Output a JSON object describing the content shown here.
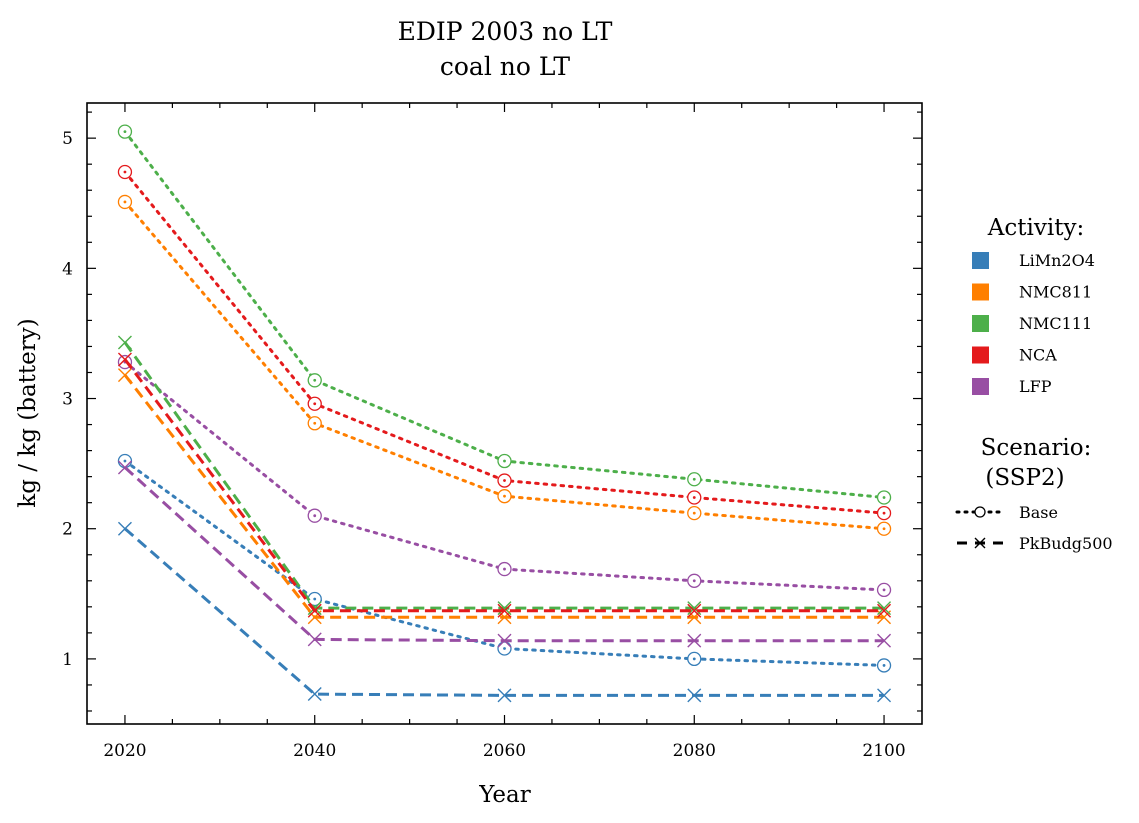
{
  "chart_data": {
    "type": "line",
    "title": [
      "EDIP 2003 no LT",
      "coal no LT"
    ],
    "xlabel": "Year",
    "ylabel": "kg / kg (battery)",
    "x": [
      2020,
      2040,
      2060,
      2080,
      2100
    ],
    "xlim": [
      2016,
      2104
    ],
    "ylim": [
      0.5,
      5.27
    ],
    "xticks": [
      2020,
      2040,
      2060,
      2080,
      2100
    ],
    "yticks": [
      1,
      2,
      3,
      4,
      5
    ],
    "activities": [
      {
        "name": "LiMn2O4",
        "color": "#377eb8"
      },
      {
        "name": "NMC811",
        "color": "#ff7f00"
      },
      {
        "name": "NMC111",
        "color": "#4daf4a"
      },
      {
        "name": "NCA",
        "color": "#e41a1c"
      },
      {
        "name": "LFP",
        "color": "#984ea3"
      }
    ],
    "scenarios": [
      {
        "name": "Base",
        "line": "dotted",
        "marker": "circle"
      },
      {
        "name": "PkBudg500",
        "line": "dashed",
        "marker": "x"
      }
    ],
    "series": [
      {
        "activity": "LiMn2O4",
        "scenario": "Base",
        "values": [
          2.52,
          1.46,
          1.08,
          1.0,
          0.95
        ]
      },
      {
        "activity": "NMC811",
        "scenario": "Base",
        "values": [
          4.51,
          2.81,
          2.25,
          2.12,
          2.0
        ]
      },
      {
        "activity": "NMC111",
        "scenario": "Base",
        "values": [
          5.05,
          3.14,
          2.52,
          2.38,
          2.24
        ]
      },
      {
        "activity": "NCA",
        "scenario": "Base",
        "values": [
          4.74,
          2.96,
          2.37,
          2.24,
          2.12
        ]
      },
      {
        "activity": "LFP",
        "scenario": "Base",
        "values": [
          3.28,
          2.1,
          1.69,
          1.6,
          1.53
        ]
      },
      {
        "activity": "LiMn2O4",
        "scenario": "PkBudg500",
        "values": [
          2.0,
          0.73,
          0.72,
          0.72,
          0.72
        ]
      },
      {
        "activity": "NMC811",
        "scenario": "PkBudg500",
        "values": [
          3.18,
          1.32,
          1.32,
          1.32,
          1.32
        ]
      },
      {
        "activity": "NMC111",
        "scenario": "PkBudg500",
        "values": [
          3.43,
          1.39,
          1.39,
          1.39,
          1.39
        ]
      },
      {
        "activity": "NCA",
        "scenario": "PkBudg500",
        "values": [
          3.3,
          1.37,
          1.37,
          1.37,
          1.37
        ]
      },
      {
        "activity": "LFP",
        "scenario": "PkBudg500",
        "values": [
          2.47,
          1.15,
          1.14,
          1.14,
          1.14
        ]
      }
    ],
    "grid": false,
    "legend": {
      "placement": "right",
      "activity_title": "Activity:",
      "scenario_title": [
        "Scenario:",
        "(SSP2)"
      ]
    }
  }
}
